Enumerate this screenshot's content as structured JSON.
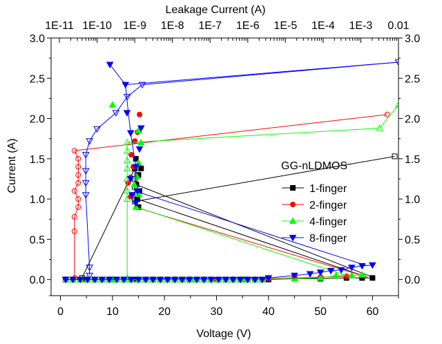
{
  "chart_data": {
    "type": "scatter",
    "title": "",
    "xlabel": "Voltage (V)",
    "ylabel": "Current (A)",
    "top_xlabel": "Leakage Current (A)",
    "xlim": [
      -1.8,
      65
    ],
    "ylim": [
      -0.2,
      3.0
    ],
    "x_ticks": [
      "0",
      "10",
      "20",
      "30",
      "40",
      "50",
      "60"
    ],
    "x_tick_values": [
      0,
      10,
      20,
      30,
      40,
      50,
      60
    ],
    "y_ticks": [
      "0.0",
      "0.5",
      "1.0",
      "1.5",
      "2.0",
      "2.5",
      "3.0"
    ],
    "y_tick_values": [
      0,
      0.5,
      1.0,
      1.5,
      2.0,
      2.5,
      3.0
    ],
    "top_ticks": [
      "1E-11",
      "1E-10",
      "1E-9",
      "1E-8",
      "1E-7",
      "1E-6",
      "1E-5",
      "1E-4",
      "1E-3",
      "0.01"
    ],
    "top_log_range": [
      -11,
      -2
    ],
    "grid": false,
    "legend": {
      "title": "GG-nLDMOS",
      "placement": "center-right",
      "entries": [
        "1-finger",
        "2-finger",
        "4-finger",
        "8-finger"
      ]
    },
    "series": [
      {
        "name": "1-finger",
        "color": "#000000",
        "marker": "square",
        "iv": [
          [
            1,
            0.0
          ],
          [
            5,
            0.0
          ],
          [
            10,
            0.0
          ],
          [
            14.5,
            0.0
          ],
          [
            15,
            0.9
          ],
          [
            14.8,
            1.0
          ],
          [
            15.2,
            1.1
          ],
          [
            14.6,
            1.18
          ],
          [
            15,
            1.3
          ],
          [
            14.3,
            1.38
          ],
          [
            14.5,
            1.5
          ],
          [
            15.5,
            1.38
          ]
        ],
        "iv_tail": [
          [
            14.8,
            1.0
          ],
          [
            59,
            0.03
          ]
        ],
        "iv_tail2": [
          [
            14.5,
            1.18
          ],
          [
            60,
            0.03
          ]
        ],
        "leak": [
          [
            -10.4,
            0.02
          ],
          [
            -9,
            1.38
          ],
          [
            -9,
            1.25
          ],
          [
            -9,
            1.15
          ],
          [
            -9,
            1.05
          ],
          [
            -9,
            0.97
          ],
          [
            -2.1,
            1.53
          ]
        ],
        "baseline": [
          [
            35,
            0.0
          ],
          [
            40,
            0.0
          ],
          [
            45,
            0.01
          ],
          [
            50,
            0.01
          ],
          [
            55,
            0.02
          ],
          [
            58,
            0.02
          ],
          [
            60,
            0.02
          ]
        ]
      },
      {
        "name": "2-finger",
        "color": "#ff0000",
        "marker": "circle",
        "iv": [
          [
            1,
            0.0
          ],
          [
            4,
            0.0
          ],
          [
            13.5,
            1.03
          ],
          [
            13,
            1.2
          ],
          [
            13.5,
            1.27
          ],
          [
            14,
            1.4
          ],
          [
            13.6,
            1.55
          ],
          [
            14.8,
            1.83
          ],
          [
            15.2,
            2.05
          ],
          [
            14.3,
            1.72
          ]
        ],
        "iv_tail": [
          [
            14.3,
            0.9
          ],
          [
            58,
            0.05
          ]
        ],
        "leak": [
          [
            -10.6,
            0.02
          ],
          [
            -10.6,
            0.6
          ],
          [
            -10.6,
            0.78
          ],
          [
            -10.5,
            0.9
          ],
          [
            -10.5,
            1.0
          ],
          [
            -10.6,
            1.1
          ],
          [
            -10.5,
            1.2
          ],
          [
            -10.5,
            1.3
          ],
          [
            -10.5,
            1.4
          ],
          [
            -10.5,
            1.5
          ],
          [
            -10.6,
            1.6
          ],
          [
            -2.3,
            2.05
          ]
        ],
        "baseline": [
          [
            30,
            0.0
          ],
          [
            35,
            0.0
          ],
          [
            40,
            0.01
          ],
          [
            45,
            0.02
          ],
          [
            50,
            0.03
          ],
          [
            55,
            0.04
          ]
        ]
      },
      {
        "name": "4-finger",
        "color": "#00ff00",
        "marker": "triangle-up",
        "iv": [
          [
            1,
            0.0
          ],
          [
            10,
            0.0
          ],
          [
            14.5,
            0.9
          ],
          [
            15,
            1.06
          ],
          [
            14.2,
            1.18
          ],
          [
            14.7,
            1.28
          ],
          [
            15,
            1.45
          ],
          [
            15.5,
            1.7
          ],
          [
            15,
            1.85
          ],
          [
            10,
            2.17
          ]
        ],
        "iv_tail": [
          [
            14.6,
            0.9
          ],
          [
            55,
            0.05
          ]
        ],
        "leak": [
          [
            -9.2,
            0.02
          ],
          [
            -9.2,
            1.0
          ],
          [
            -9.2,
            1.1
          ],
          [
            -9.2,
            1.25
          ],
          [
            -9.2,
            1.38
          ],
          [
            -9.2,
            1.48
          ],
          [
            -9.2,
            1.6
          ],
          [
            -9.2,
            1.7
          ],
          [
            -2.5,
            1.88
          ],
          [
            -2.0,
            2.17
          ]
        ],
        "baseline": [
          [
            25,
            0.0
          ],
          [
            35,
            0.0
          ],
          [
            45,
            0.01
          ],
          [
            50,
            0.02
          ],
          [
            53,
            0.05
          ],
          [
            56,
            0.05
          ],
          [
            58,
            0.06
          ]
        ]
      },
      {
        "name": "8-finger",
        "color": "#0000ff",
        "marker": "triangle-down",
        "iv": [
          [
            1,
            0.0
          ],
          [
            9.5,
            2.67
          ],
          [
            12.5,
            2.42
          ],
          [
            12.8,
            2.07
          ],
          [
            13.5,
            1.82
          ],
          [
            14.5,
            1.4
          ],
          [
            13.5,
            1.25
          ],
          [
            14.8,
            1.1
          ],
          [
            13.8,
            1.05
          ],
          [
            14.5,
            0.95
          ],
          [
            15.2,
            1.62
          ],
          [
            15.5,
            1.88
          ]
        ],
        "iv_tail": [
          [
            14.3,
            1.1
          ],
          [
            59,
            0.17
          ]
        ],
        "leak": [
          [
            -10.2,
            0.05
          ],
          [
            -10.2,
            0.15
          ],
          [
            -10.3,
            1.05
          ],
          [
            -10.3,
            1.2
          ],
          [
            -10.3,
            1.35
          ],
          [
            -10.3,
            1.55
          ],
          [
            -10.2,
            1.72
          ],
          [
            -10.0,
            1.87
          ],
          [
            -9.5,
            2.07
          ],
          [
            -9.2,
            2.27
          ],
          [
            -8.8,
            2.42
          ],
          [
            -2.0,
            2.7
          ]
        ],
        "baseline": [
          [
            40,
            0.02
          ],
          [
            45,
            0.05
          ],
          [
            48,
            0.07
          ],
          [
            50,
            0.09
          ],
          [
            52,
            0.11
          ],
          [
            54,
            0.12
          ],
          [
            56,
            0.15
          ],
          [
            58,
            0.17
          ],
          [
            60,
            0.18
          ]
        ]
      }
    ]
  }
}
